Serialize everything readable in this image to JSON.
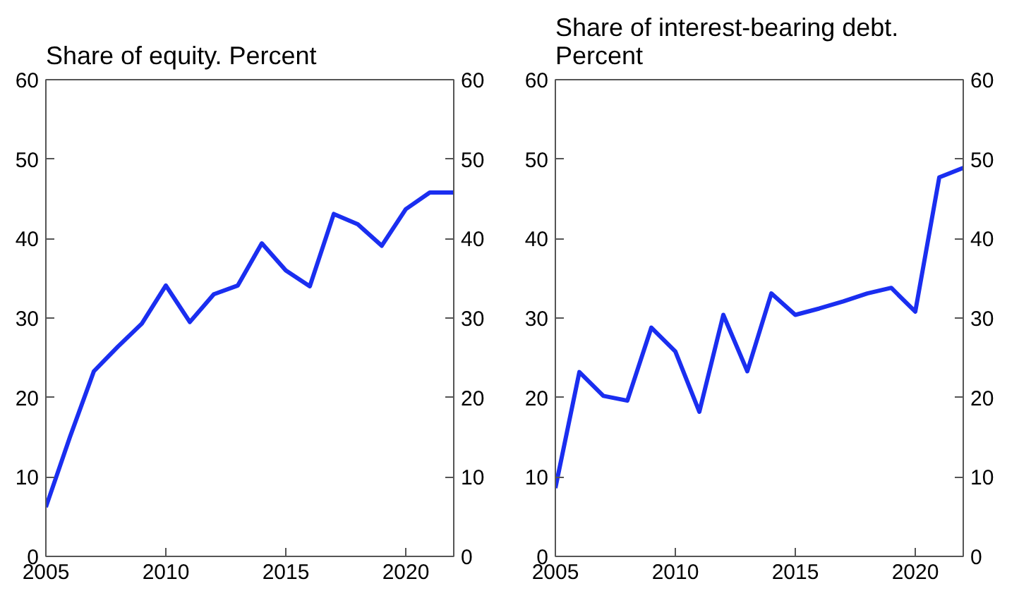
{
  "chart_data": [
    {
      "type": "line",
      "title": "Share of equity. Percent",
      "x": [
        2005,
        2006,
        2007,
        2008,
        2009,
        2010,
        2011,
        2012,
        2013,
        2014,
        2015,
        2016,
        2017,
        2018,
        2019,
        2020,
        2021,
        2022
      ],
      "series": [
        {
          "color": "#1a2ef0",
          "values": [
            6.2,
            15,
            23.3,
            26.4,
            29.3,
            34.1,
            29.5,
            33,
            34.1,
            39.4,
            36,
            34,
            43.1,
            41.8,
            39.1,
            43.7,
            45.8,
            45.8
          ]
        }
      ],
      "xlim": [
        2005,
        2022
      ],
      "xticks": [
        2005,
        2010,
        2015,
        2020
      ],
      "ylim": [
        0,
        60
      ],
      "yticks": [
        0,
        10,
        20,
        30,
        40,
        50,
        60
      ],
      "y2lim": [
        0,
        60
      ],
      "y2ticks": [
        0,
        10,
        20,
        30,
        40,
        50,
        60
      ],
      "grid": false
    },
    {
      "type": "line",
      "title": "Share of interest-bearing debt. Percent",
      "x": [
        2005,
        2006,
        2007,
        2008,
        2009,
        2010,
        2011,
        2012,
        2013,
        2014,
        2015,
        2016,
        2017,
        2018,
        2019,
        2020,
        2021,
        2022
      ],
      "series": [
        {
          "color": "#1a2ef0",
          "values": [
            8.6,
            23.2,
            20.2,
            19.6,
            28.8,
            25.8,
            18.2,
            30.4,
            23.3,
            33.1,
            30.4,
            31.2,
            32.1,
            33.1,
            33.8,
            30.8,
            47.7,
            48.9
          ]
        }
      ],
      "xlim": [
        2005,
        2022
      ],
      "xticks": [
        2005,
        2010,
        2015,
        2020
      ],
      "ylim": [
        0,
        60
      ],
      "yticks": [
        0,
        10,
        20,
        30,
        40,
        50,
        60
      ],
      "y2lim": [
        0,
        60
      ],
      "y2ticks": [
        0,
        10,
        20,
        30,
        40,
        50,
        60
      ],
      "grid": false
    }
  ]
}
